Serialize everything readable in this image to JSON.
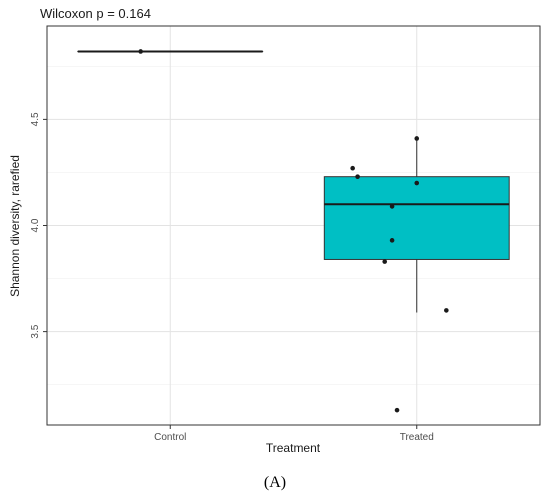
{
  "chart_data": {
    "type": "box",
    "title": "Wilcoxon p = 0.164",
    "xlabel": "Treatment",
    "ylabel": "Shannon diversity, rarefied",
    "panel_label": "(A)",
    "categories": [
      "Control",
      "Treated"
    ],
    "ylim": [
      3.06,
      4.94
    ],
    "yticks": [
      3.5,
      4.0,
      4.5
    ],
    "ytick_labels": [
      "3.5",
      "4.0",
      "4.5"
    ],
    "grid": true,
    "fill_colors": {
      "Control": "#00BFC4",
      "Treated": "#00BFC4"
    },
    "boxes": [
      {
        "category": "Control",
        "q1": 4.82,
        "median": 4.82,
        "q3": 4.82,
        "whisker_low": 4.82,
        "whisker_high": 4.82
      },
      {
        "category": "Treated",
        "q1": 3.84,
        "median": 4.1,
        "q3": 4.23,
        "whisker_low": 3.59,
        "whisker_high": 4.41
      }
    ],
    "points": [
      {
        "category": "Control",
        "jitter": -0.12,
        "y": 4.82
      },
      {
        "category": "Treated",
        "jitter": 0.0,
        "y": 4.41
      },
      {
        "category": "Treated",
        "jitter": -0.26,
        "y": 4.27
      },
      {
        "category": "Treated",
        "jitter": -0.24,
        "y": 4.23
      },
      {
        "category": "Treated",
        "jitter": 0.0,
        "y": 4.2
      },
      {
        "category": "Treated",
        "jitter": -0.1,
        "y": 4.09
      },
      {
        "category": "Treated",
        "jitter": -0.1,
        "y": 3.93
      },
      {
        "category": "Treated",
        "jitter": -0.13,
        "y": 3.83
      },
      {
        "category": "Treated",
        "jitter": 0.12,
        "y": 3.6
      },
      {
        "category": "Treated",
        "jitter": -0.08,
        "y": 3.13
      }
    ]
  }
}
